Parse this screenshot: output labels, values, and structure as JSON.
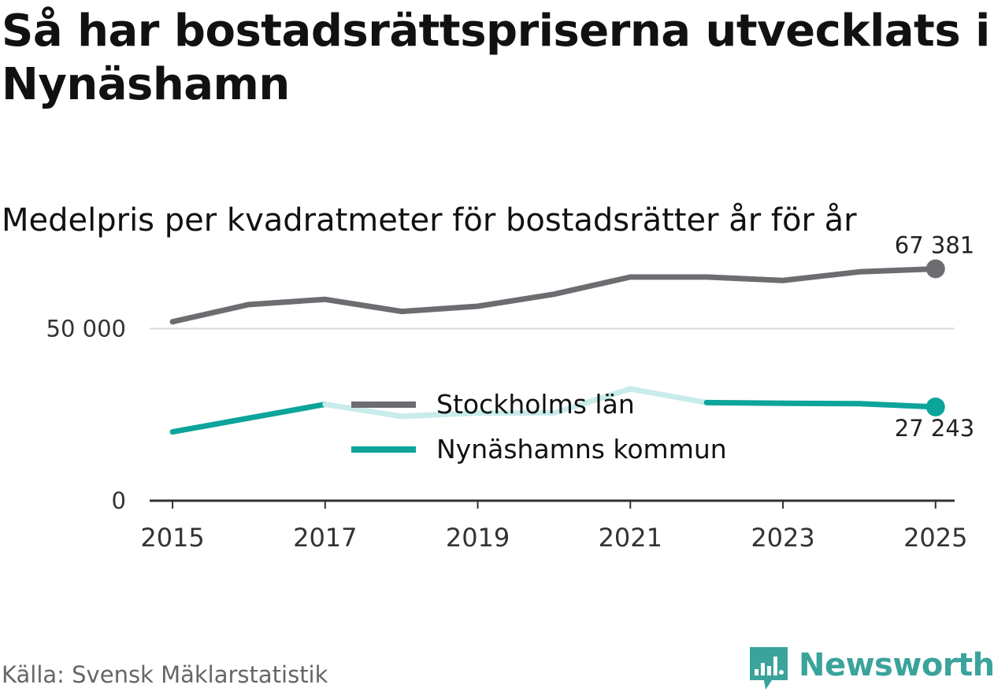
{
  "header": {
    "title": "Så har bostadsrättspriserna utvecklats i Nynäshamn",
    "subtitle": "Medelpris per kvadratmeter för bostadsrätter år för år"
  },
  "footer": {
    "source": "Källa: Svensk Mäklarstatistik",
    "brand": "Newsworthy"
  },
  "colors": {
    "stockholm": "#6d6c71",
    "nynashamn": "#0ca49b",
    "nynashamn_faded": "#c8ecea",
    "grid": "#d9d9d9",
    "axis": "#333333"
  },
  "chart_data": {
    "type": "line",
    "title": "Så har bostadsrättspriserna utvecklats i Nynäshamn",
    "subtitle": "Medelpris per kvadratmeter för bostadsrätter år för år",
    "xlabel": "",
    "ylabel": "",
    "x": [
      2015,
      2016,
      2017,
      2018,
      2019,
      2020,
      2021,
      2022,
      2023,
      2024,
      2025
    ],
    "xticks": [
      2015,
      2017,
      2019,
      2021,
      2023,
      2025
    ],
    "xtick_labels": [
      "2015",
      "2017",
      "2019",
      "2021",
      "2023",
      "2025"
    ],
    "yticks": [
      0,
      50000
    ],
    "ytick_labels": [
      "0",
      "50 000"
    ],
    "xlim": [
      2014.7,
      2025.25
    ],
    "ylim": [
      0,
      70000
    ],
    "grid": true,
    "legend": "center",
    "series": [
      {
        "name": "Stockholms län",
        "values": [
          52000,
          57000,
          58500,
          55000,
          56500,
          60000,
          65000,
          65000,
          64000,
          66500,
          67381
        ],
        "end_label": "67 381"
      },
      {
        "name": "Nynäshamns kommun",
        "values": [
          20000,
          24000,
          28000,
          24500,
          25500,
          25500,
          32500,
          28500,
          28300,
          28200,
          27243
        ],
        "faded_years": [
          2018,
          2019,
          2020,
          2021,
          2022
        ],
        "end_label": "27 243"
      }
    ]
  }
}
